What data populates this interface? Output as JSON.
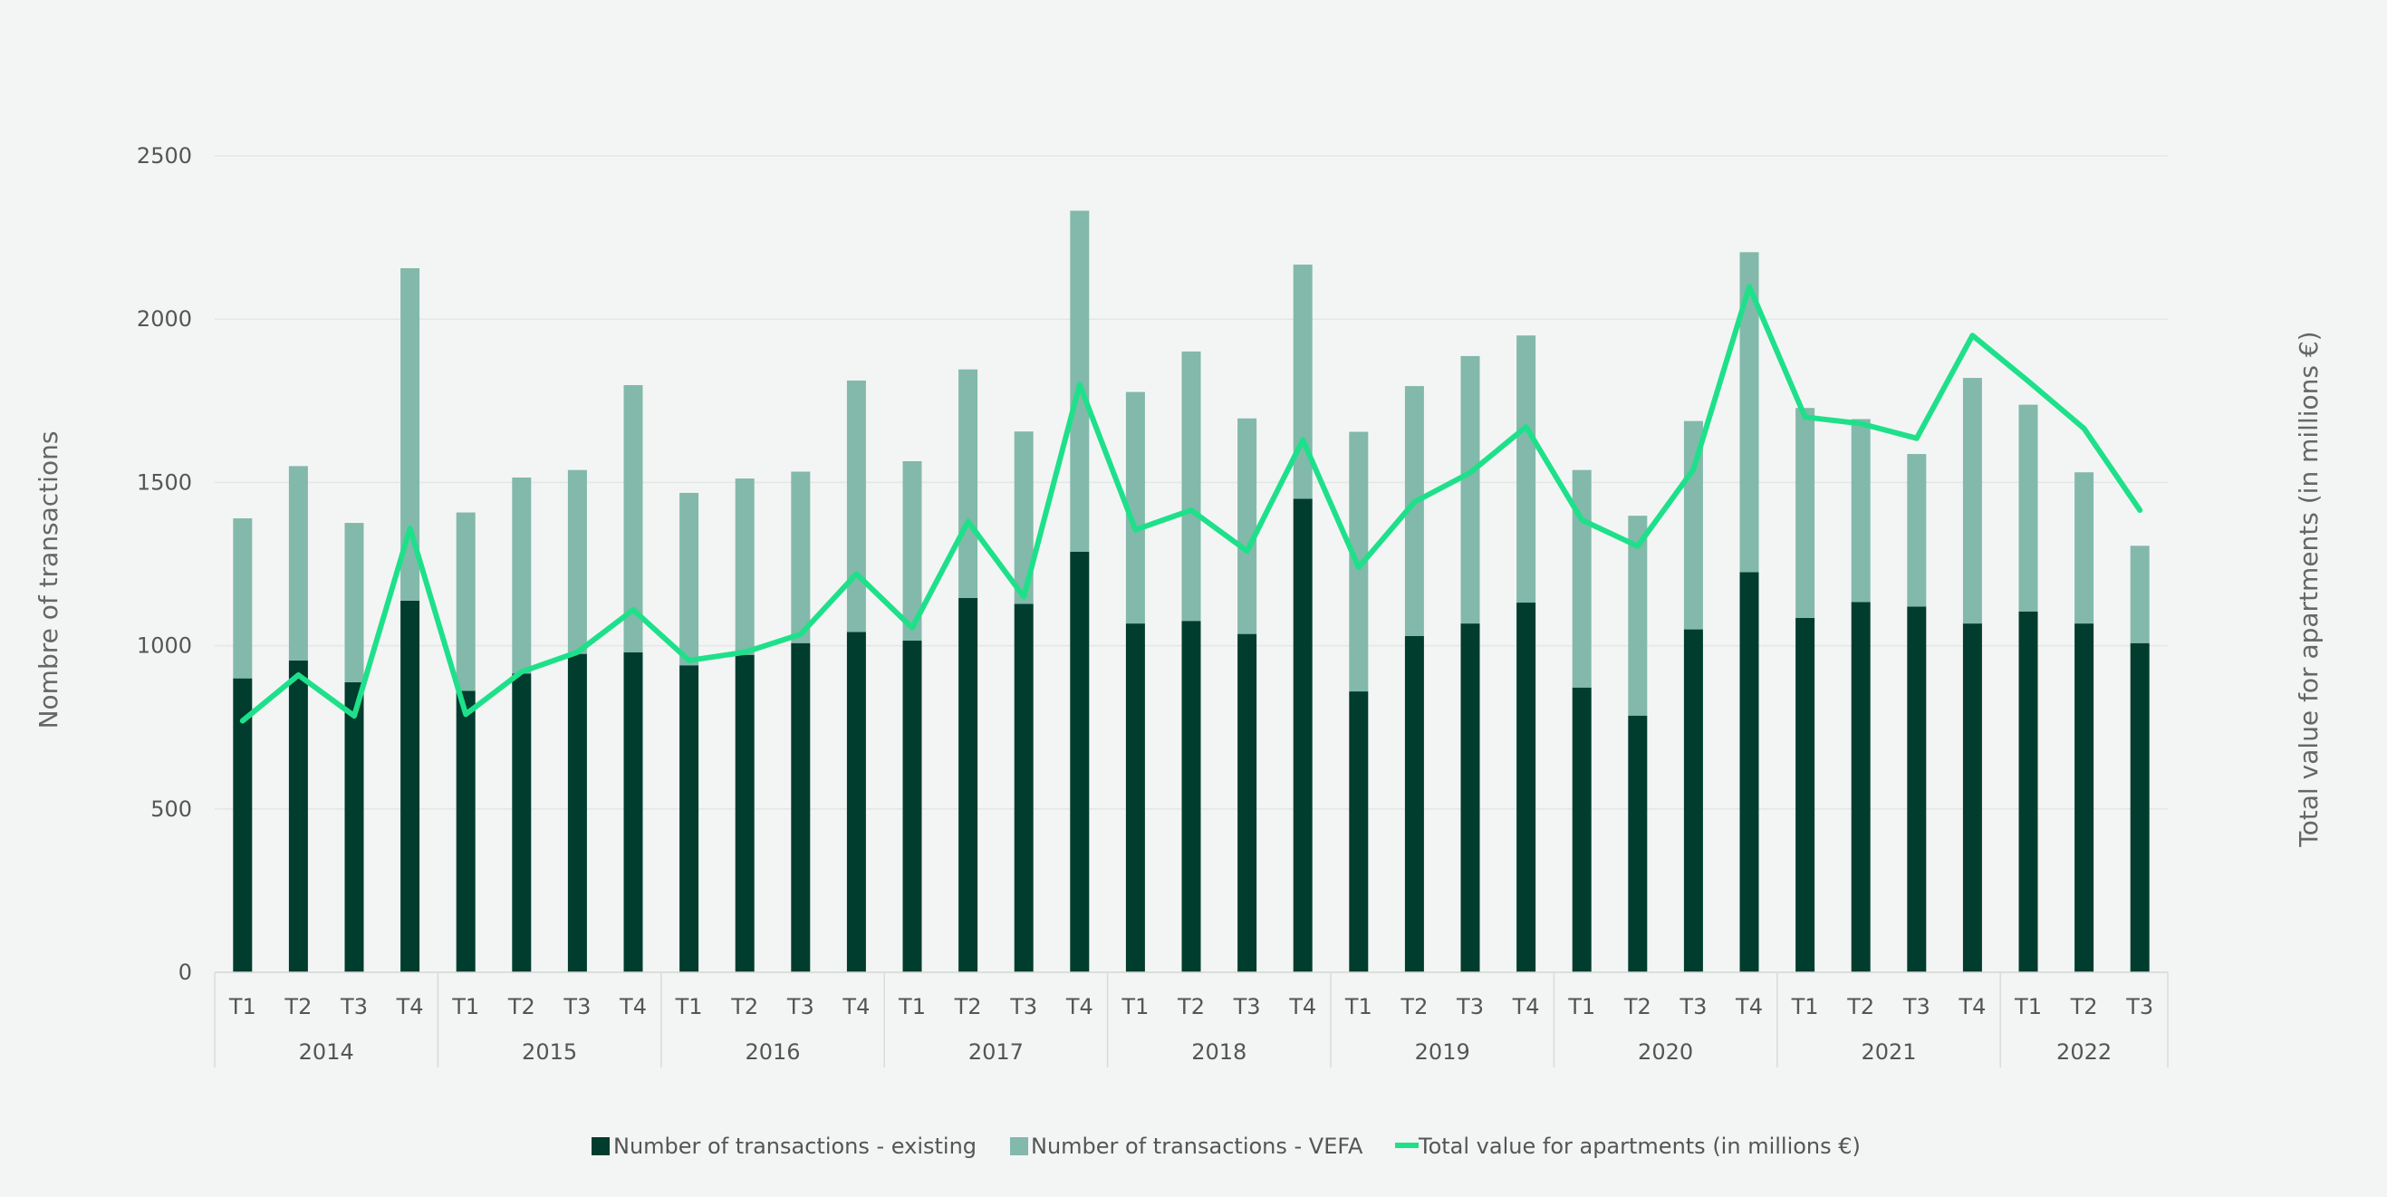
{
  "chart_data": {
    "type": "bar",
    "stacked": true,
    "x_quarters": [
      "T1",
      "T2",
      "T3",
      "T4",
      "T1",
      "T2",
      "T3",
      "T4",
      "T1",
      "T2",
      "T3",
      "T4",
      "T1",
      "T2",
      "T3",
      "T4",
      "T1",
      "T2",
      "T3",
      "T4",
      "T1",
      "T2",
      "T3",
      "T4",
      "T1",
      "T2",
      "T3",
      "T4",
      "T1",
      "T2",
      "T3",
      "T4",
      "T1",
      "T2",
      "T3"
    ],
    "x_years": [
      "2014",
      "2015",
      "2016",
      "2017",
      "2018",
      "2019",
      "2020",
      "2021",
      "2022"
    ],
    "year_quarter_counts": [
      4,
      4,
      4,
      4,
      4,
      4,
      4,
      4,
      3
    ],
    "series": [
      {
        "name": "Number of transactions - existing",
        "type": "bar",
        "color": "#003d2e",
        "values": [
          900,
          955,
          888,
          1138,
          862,
          915,
          975,
          980,
          940,
          972,
          1008,
          1042,
          1016,
          1146,
          1128,
          1288,
          1068,
          1076,
          1036,
          1450,
          860,
          1030,
          1068,
          1132,
          872,
          786,
          1050,
          1225,
          1085,
          1134,
          1120,
          1068,
          1105,
          1068,
          1008
        ]
      },
      {
        "name": "Number of transactions - VEFA",
        "type": "bar",
        "color": "#82b9aa",
        "values": [
          490,
          595,
          488,
          1018,
          546,
          600,
          563,
          818,
          528,
          540,
          525,
          770,
          549,
          700,
          528,
          1044,
          709,
          825,
          660,
          717,
          795,
          765,
          819,
          818,
          666,
          612,
          638,
          980,
          643,
          560,
          467,
          752,
          633,
          463,
          298
        ]
      },
      {
        "name": "Total value for apartments (in millions €)",
        "type": "line",
        "color": "#1fe08a",
        "values": [
          770,
          910,
          785,
          1360,
          790,
          920,
          980,
          1110,
          955,
          980,
          1035,
          1220,
          1055,
          1380,
          1150,
          1800,
          1355,
          1415,
          1290,
          1630,
          1240,
          1440,
          1530,
          1670,
          1385,
          1305,
          1540,
          2100,
          1700,
          1680,
          1635,
          1950,
          1810,
          1665,
          1415
        ]
      }
    ],
    "y_axis": {
      "title": "Nombre of transactions",
      "ticks": [
        "0",
        "500",
        "1000",
        "1500",
        "2000",
        "2500"
      ],
      "min": 0,
      "max": 2500
    },
    "y2_axis": {
      "title": "Total value for apartments (in millions €)"
    },
    "grid": true,
    "legend_position": "bottom"
  }
}
